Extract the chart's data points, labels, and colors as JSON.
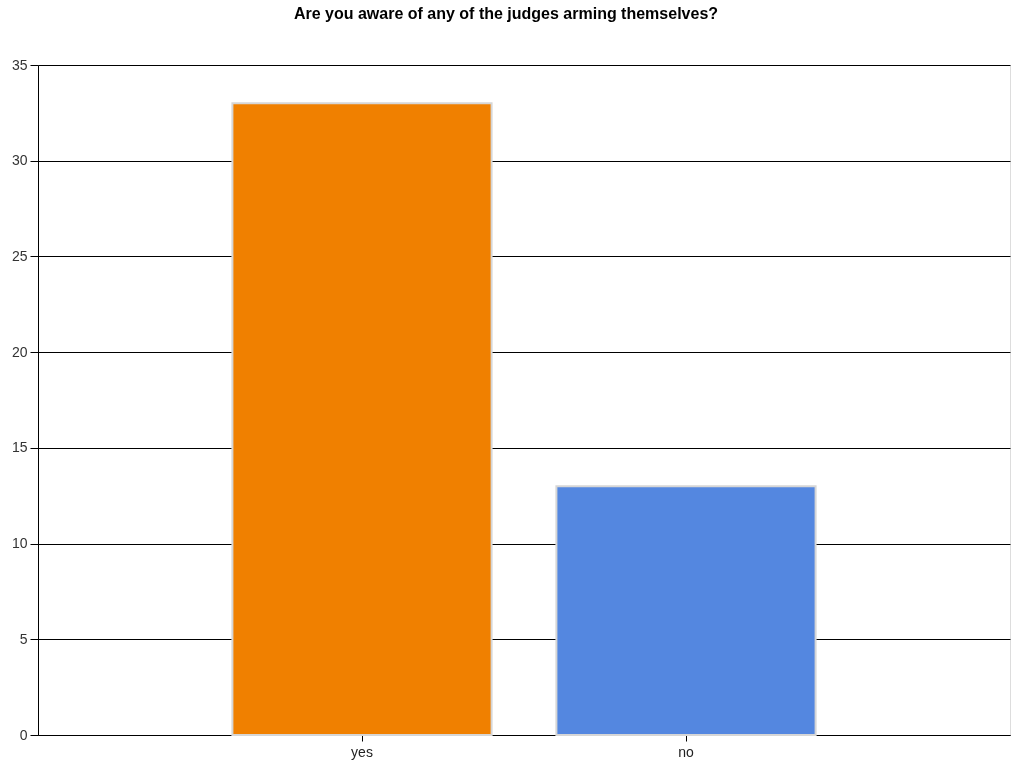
{
  "chart_data": {
    "type": "bar",
    "title": "Are you aware of any of the judges arming themselves?",
    "categories": [
      "yes",
      "no"
    ],
    "values": [
      33,
      13
    ],
    "colors": [
      "#f08000",
      "#5487e0"
    ],
    "ylim": [
      0,
      35
    ],
    "yticks": [
      0,
      5,
      10,
      15,
      20,
      25,
      30,
      35
    ],
    "grid": "y"
  }
}
